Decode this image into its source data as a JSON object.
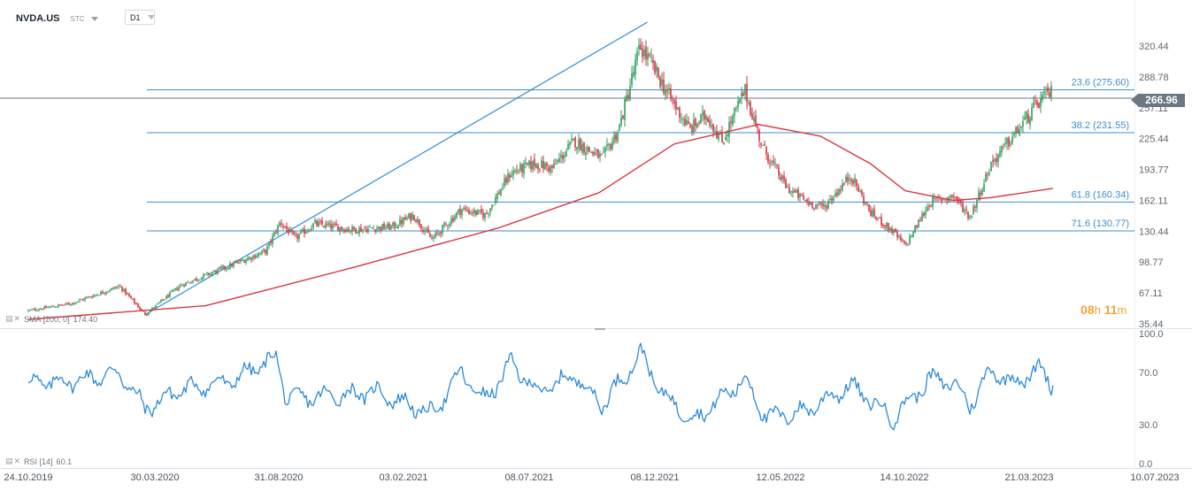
{
  "header": {
    "symbol": "NVDA.US",
    "asset_type": "STC",
    "timeframe": "D1"
  },
  "current_price": "266.96",
  "countdown": {
    "hours": "08",
    "hour_unit": "h",
    "minutes": "11",
    "minute_unit": "m"
  },
  "indicators": {
    "sma": {
      "label": "SMA [200, 0]",
      "value": "174.40"
    },
    "rsi": {
      "label": "RSI [14]",
      "value": "60.1"
    }
  },
  "colors": {
    "up_candle": "#2f9e5b",
    "down_candle": "#d5323e",
    "sma_line": "#d9363e",
    "rsi_line": "#2b8ad8",
    "fib_line": "#3b8fd0",
    "trend_line": "#2b8ad8",
    "price_tag": "#6b7785"
  },
  "chart_data": [
    {
      "type": "candlestick",
      "title": "NVDA.US",
      "y_ticks": [
        "320.44",
        "288.78",
        "257.11",
        "225.44",
        "193.77",
        "162.11",
        "130.44",
        "98.77",
        "67.11",
        "35.44"
      ],
      "ylim": [
        35.44,
        345
      ],
      "x_ticks": [
        "24.10.2019",
        "30.03.2020",
        "31.08.2020",
        "03.02.2021",
        "08.07.2021",
        "08.12.2021",
        "12.05.2022",
        "14.10.2022",
        "21.03.2023",
        "10.07.2023"
      ],
      "price_points": [
        [
          "2019-10-24",
          49
        ],
        [
          "2019-12-15",
          56
        ],
        [
          "2020-02-15",
          74
        ],
        [
          "2020-03-18",
          45
        ],
        [
          "2020-05-01",
          75
        ],
        [
          "2020-07-01",
          95
        ],
        [
          "2020-08-15",
          110
        ],
        [
          "2020-09-02",
          140
        ],
        [
          "2020-09-20",
          123
        ],
        [
          "2020-10-15",
          138
        ],
        [
          "2020-12-01",
          132
        ],
        [
          "2021-01-20",
          135
        ],
        [
          "2021-02-15",
          147
        ],
        [
          "2021-03-10",
          122
        ],
        [
          "2021-04-15",
          153
        ],
        [
          "2021-05-15",
          147
        ],
        [
          "2021-06-15",
          190
        ],
        [
          "2021-07-15",
          200
        ],
        [
          "2021-08-05",
          195
        ],
        [
          "2021-09-01",
          223
        ],
        [
          "2021-10-05",
          205
        ],
        [
          "2021-10-25",
          235
        ],
        [
          "2021-11-20",
          320
        ],
        [
          "2021-12-05",
          300
        ],
        [
          "2021-12-25",
          270
        ],
        [
          "2022-01-20",
          235
        ],
        [
          "2022-02-10",
          250
        ],
        [
          "2022-03-01",
          222
        ],
        [
          "2022-03-29",
          275
        ],
        [
          "2022-04-20",
          216
        ],
        [
          "2022-05-20",
          175
        ],
        [
          "2022-06-15",
          160
        ],
        [
          "2022-07-05",
          155
        ],
        [
          "2022-08-08",
          188
        ],
        [
          "2022-09-01",
          150
        ],
        [
          "2022-09-30",
          130
        ],
        [
          "2022-10-15",
          115
        ],
        [
          "2022-11-15",
          160
        ],
        [
          "2022-12-15",
          167
        ],
        [
          "2023-01-05",
          145
        ],
        [
          "2023-02-01",
          200
        ],
        [
          "2023-03-01",
          228
        ],
        [
          "2023-03-31",
          265
        ],
        [
          "2023-04-11",
          274
        ]
      ],
      "sma_points": [
        [
          "2019-10-24",
          40
        ],
        [
          "2020-06-01",
          54
        ],
        [
          "2020-12-01",
          93
        ],
        [
          "2021-06-01",
          134
        ],
        [
          "2021-10-01",
          170
        ],
        [
          "2022-01-01",
          220
        ],
        [
          "2022-04-15",
          240
        ],
        [
          "2022-07-01",
          228
        ],
        [
          "2022-09-01",
          200
        ],
        [
          "2022-10-15",
          172
        ],
        [
          "2022-12-15",
          162
        ],
        [
          "2023-02-01",
          165
        ],
        [
          "2023-04-11",
          174.4
        ]
      ],
      "trend_line": {
        "start": [
          "2020-03-18",
          45
        ],
        "end": [
          "2021-11-29",
          345
        ]
      },
      "fib_levels": [
        {
          "label": "23.6 (275.60)",
          "value": 275.6
        },
        {
          "label": "38.2 (231.55)",
          "value": 231.55
        },
        {
          "label": "61.8 (160.34)",
          "value": 160.34
        },
        {
          "label": "71.6 (130.77)",
          "value": 130.77
        }
      ],
      "fib_start": "2020-03-20",
      "current_price": 266.96
    },
    {
      "type": "line",
      "title": "RSI [14]",
      "y_ticks": [
        "100.0",
        "70.0",
        "30.0",
        "0.0"
      ],
      "ylim": [
        0,
        100
      ],
      "rsi_points": [
        [
          "2019-10-24",
          62
        ],
        [
          "2019-12-15",
          63
        ],
        [
          "2020-02-15",
          70
        ],
        [
          "2020-03-18",
          42
        ],
        [
          "2020-05-01",
          57
        ],
        [
          "2020-07-01",
          63
        ],
        [
          "2020-08-28",
          82
        ],
        [
          "2020-09-10",
          50
        ],
        [
          "2020-11-01",
          52
        ],
        [
          "2021-01-01",
          55
        ],
        [
          "2021-03-10",
          38
        ],
        [
          "2021-04-15",
          70
        ],
        [
          "2021-05-15",
          48
        ],
        [
          "2021-06-15",
          77
        ],
        [
          "2021-07-20",
          55
        ],
        [
          "2021-09-01",
          68
        ],
        [
          "2021-10-05",
          45
        ],
        [
          "2021-11-22",
          85
        ],
        [
          "2021-12-15",
          55
        ],
        [
          "2022-01-25",
          33
        ],
        [
          "2022-03-29",
          65
        ],
        [
          "2022-04-25",
          35
        ],
        [
          "2022-06-10",
          40
        ],
        [
          "2022-08-08",
          60
        ],
        [
          "2022-09-30",
          35
        ],
        [
          "2022-11-15",
          65
        ],
        [
          "2022-12-15",
          62
        ],
        [
          "2023-01-05",
          45
        ],
        [
          "2023-02-01",
          72
        ],
        [
          "2023-03-01",
          62
        ],
        [
          "2023-03-31",
          73
        ],
        [
          "2023-04-11",
          60
        ]
      ],
      "current_value": 60.1
    }
  ]
}
